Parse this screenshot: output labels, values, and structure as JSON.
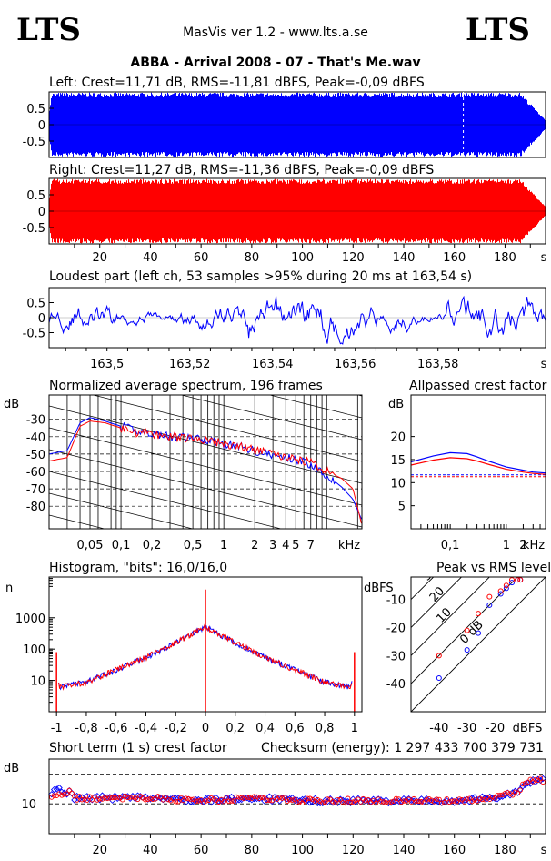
{
  "header": {
    "logo_left": "LTS",
    "logo_right": "LTS",
    "app": "MasVis ver 1.2 - www.lts.a.se",
    "file_title": "ABBA - Arrival 2008 - 07 - That's Me.wav"
  },
  "colors": {
    "left": "#0000ff",
    "right": "#ff0000",
    "frame": "#000000"
  },
  "chart_data": [
    {
      "id": "left_wave",
      "type": "area",
      "title": "Left: Crest=11,71 dB, RMS=-11,81 dBFS, Peak=-0,09 dBFS",
      "yticks": [
        "0.5",
        "0",
        "-0.5"
      ],
      "ylim": [
        -1,
        1
      ],
      "xlim": [
        0,
        196
      ],
      "series": [
        {
          "color": "#0000ff",
          "envelope_profile": "full-scale throughout, fade-out 188-196 s"
        }
      ]
    },
    {
      "id": "right_wave",
      "type": "area",
      "title": "Right: Crest=11,27 dB, RMS=-11,36 dBFS, Peak=-0,09 dBFS",
      "yticks": [
        "0.5",
        "0",
        "-0.5"
      ],
      "xticks": [
        "20",
        "40",
        "60",
        "80",
        "100",
        "120",
        "140",
        "160",
        "180",
        "s"
      ],
      "xlim": [
        0,
        196
      ],
      "ylim": [
        -1,
        1
      ]
    },
    {
      "id": "loudest",
      "type": "line",
      "title": "Loudest part (left  ch, 53 samples >95% during 20 ms at 163,54 s)",
      "yticks": [
        "0.5",
        "0",
        "-0.5"
      ],
      "xticks": [
        "163,5",
        "163,52",
        "163,54",
        "163,56",
        "163,58",
        "s"
      ],
      "xlim": [
        163.486,
        163.606
      ],
      "ylim": [
        -1,
        1
      ]
    },
    {
      "id": "spectrum",
      "type": "line",
      "title": "Normalized average spectrum, 196 frames",
      "ylabel": "dB",
      "yticks": [
        "-30",
        "-40",
        "-50",
        "-60",
        "-70",
        "-80"
      ],
      "xticks": [
        "0,05",
        "0,1",
        "0,2",
        "0,5",
        "1",
        "2",
        "3",
        "4",
        "5",
        "7",
        "kHz"
      ],
      "ylim": [
        -93,
        -16
      ],
      "xlim_khz": [
        0.02,
        22
      ],
      "series": [
        {
          "name": "left",
          "color": "#0000ff",
          "x_khz": [
            0.02,
            0.03,
            0.04,
            0.05,
            0.07,
            0.1,
            0.15,
            0.2,
            0.3,
            0.5,
            0.7,
            1,
            1.5,
            2,
            3,
            5,
            7,
            10,
            14,
            18,
            22
          ],
          "y_db": [
            -50,
            -48,
            -32,
            -29,
            -31,
            -34,
            -37,
            -38,
            -40,
            -41,
            -42,
            -44,
            -46,
            -48,
            -51,
            -53,
            -56,
            -62,
            -69,
            -76,
            -88
          ]
        },
        {
          "name": "right",
          "color": "#ff0000",
          "x_khz": [
            0.02,
            0.03,
            0.04,
            0.05,
            0.07,
            0.1,
            0.15,
            0.2,
            0.3,
            0.5,
            0.7,
            1,
            1.5,
            2,
            3,
            5,
            7,
            10,
            14,
            18,
            22
          ],
          "y_db": [
            -54,
            -52,
            -34,
            -31,
            -32,
            -35,
            -38,
            -38,
            -40,
            -41,
            -42,
            -44,
            -46,
            -48,
            -50,
            -53,
            -55,
            -60,
            -64,
            -70,
            -91
          ]
        }
      ]
    },
    {
      "id": "allpass_crest",
      "type": "line",
      "title": "Allpassed crest factor",
      "ylabel": "dB",
      "yticks": [
        "20",
        "15",
        "10",
        "5"
      ],
      "xticks": [
        "0,1",
        "1",
        "2",
        "kHz"
      ],
      "ylim": [
        0,
        29
      ],
      "xlim_khz": [
        0.02,
        5
      ],
      "series": [
        {
          "name": "left",
          "color": "#0000ff",
          "x_khz": [
            0.02,
            0.05,
            0.1,
            0.2,
            0.3,
            0.5,
            1,
            2,
            3,
            5
          ],
          "y_db": [
            14.5,
            15.8,
            16.5,
            16.3,
            15.6,
            14.6,
            13.4,
            12.7,
            12.3,
            12.1
          ]
        },
        {
          "name": "right",
          "color": "#ff0000",
          "x_khz": [
            0.02,
            0.05,
            0.1,
            0.2,
            0.3,
            0.5,
            1,
            2,
            3,
            5
          ],
          "y_db": [
            13.8,
            14.9,
            15.4,
            15.2,
            14.7,
            13.9,
            12.9,
            12.3,
            12.0,
            11.8
          ]
        }
      ],
      "reference_db": {
        "left": 11.7,
        "right": 11.3
      }
    },
    {
      "id": "histogram",
      "type": "line",
      "title": "Histogram, \"bits\": 16,0/16,0",
      "ylabel": "n",
      "yticks": [
        "1000",
        "100",
        "10"
      ],
      "xticks": [
        "-1",
        "-0,8",
        "-0,6",
        "-0,4",
        "-0,2",
        "0",
        "0,2",
        "0,4",
        "0,6",
        "0,8",
        "1"
      ],
      "xlim": [
        -1.05,
        1.05
      ],
      "ylog_range": [
        1,
        20000
      ],
      "series": [
        {
          "name": "left",
          "color": "#0000ff",
          "x": [
            -1,
            -0.98,
            -0.8,
            -0.6,
            -0.4,
            -0.2,
            0,
            0.2,
            0.4,
            0.6,
            0.8,
            0.98,
            1
          ],
          "y": [
            60,
            6,
            9,
            22,
            55,
            160,
            520,
            160,
            55,
            22,
            9,
            6,
            60
          ]
        },
        {
          "name": "right",
          "color": "#ff0000",
          "x": [
            -1,
            -0.98,
            -0.8,
            -0.6,
            -0.4,
            -0.2,
            0,
            0.2,
            0.4,
            0.6,
            0.8,
            0.98,
            1
          ],
          "y": [
            60,
            6,
            9,
            22,
            55,
            160,
            520,
            160,
            55,
            22,
            9,
            6,
            60
          ]
        }
      ],
      "spikes": [
        {
          "x": 0,
          "y": 8000
        },
        {
          "x": -1,
          "y": 80
        },
        {
          "x": 1,
          "y": 80
        }
      ]
    },
    {
      "id": "peak_vs_rms",
      "type": "scatter",
      "title": "Peak vs RMS level",
      "ylabel": "dBFS",
      "yticks": [
        "-10",
        "-20",
        "-30",
        "-40"
      ],
      "xticks": [
        "-40",
        "-30",
        "-20",
        "dBFS"
      ],
      "xlim": [
        -50,
        -2
      ],
      "ylim": [
        -50,
        -2
      ],
      "crest_lines": [
        "40",
        "30",
        "20",
        "10",
        "0 dB"
      ],
      "series": [
        {
          "name": "left",
          "color": "#0000ff",
          "x": [
            -40,
            -30,
            -26,
            -22,
            -18,
            -16,
            -14,
            -12,
            -11
          ],
          "y": [
            -38,
            -28,
            -22,
            -12,
            -8,
            -6,
            -4,
            -3,
            -3
          ]
        },
        {
          "name": "right",
          "color": "#ff0000",
          "x": [
            -40,
            -30,
            -26,
            -22,
            -18,
            -16,
            -14,
            -12,
            -11
          ],
          "y": [
            -30,
            -21,
            -15,
            -9,
            -7,
            -5,
            -3,
            -3,
            -3
          ]
        }
      ]
    },
    {
      "id": "short_term_crest",
      "type": "scatter",
      "title": "Short term (1 s) crest factor",
      "checksum": "Checksum (energy):  1 297 433 700 379 731",
      "ylabel": "dB",
      "yticks": [
        "10"
      ],
      "xticks": [
        "20",
        "40",
        "60",
        "80",
        "100",
        "120",
        "140",
        "160",
        "180",
        "s"
      ],
      "xlim": [
        0,
        196
      ],
      "ylim": [
        0,
        25
      ],
      "dashed_levels_db": [
        10,
        20
      ],
      "series": [
        {
          "name": "left",
          "color": "#0000ff",
          "x": [
            2,
            4,
            6,
            8,
            10,
            20,
            40,
            60,
            80,
            100,
            120,
            140,
            160,
            175,
            185,
            188,
            192
          ],
          "y": [
            14,
            15,
            13,
            14,
            12,
            12,
            12,
            11,
            12,
            11,
            11,
            11,
            11,
            12,
            14,
            16,
            18
          ]
        },
        {
          "name": "right",
          "color": "#ff0000",
          "x": [
            2,
            4,
            6,
            8,
            10,
            20,
            40,
            60,
            80,
            100,
            120,
            140,
            160,
            175,
            185,
            188,
            192
          ],
          "y": [
            13,
            14,
            13,
            14,
            12,
            12,
            12,
            11,
            12,
            11,
            11,
            11,
            11,
            12,
            14,
            17,
            18
          ]
        }
      ]
    }
  ]
}
